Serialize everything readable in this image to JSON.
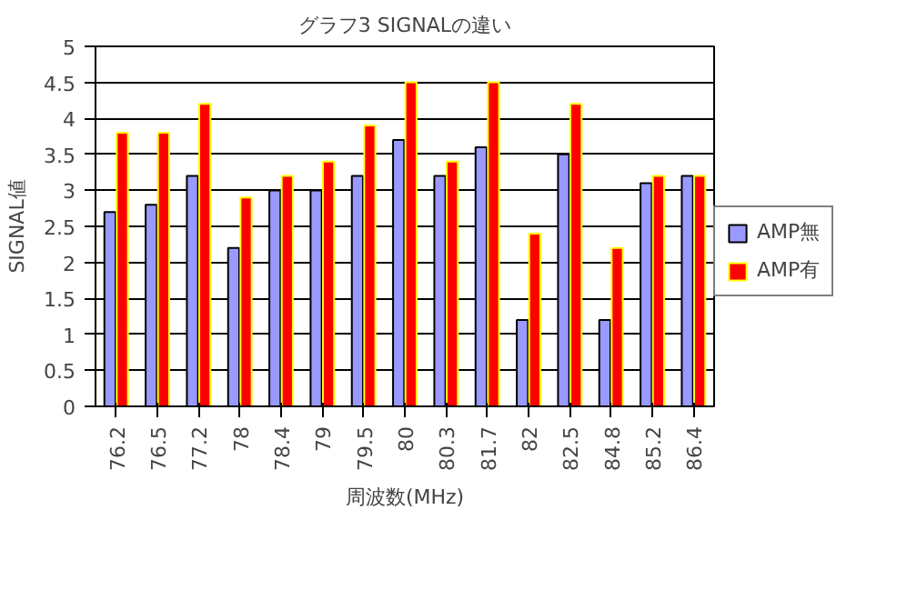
{
  "chart_data": {
    "type": "bar",
    "title": "グラフ3 SIGNALの違い",
    "xlabel": "周波数(MHz)",
    "ylabel": "SIGNAL値",
    "categories": [
      "76.2",
      "76.5",
      "77.2",
      "78",
      "78.4",
      "79",
      "79.5",
      "80",
      "80.3",
      "81.7",
      "82",
      "82.5",
      "84.8",
      "85.2",
      "86.4"
    ],
    "series": [
      {
        "name": "AMP無",
        "color": "#9999ff",
        "values": [
          2.7,
          2.8,
          3.2,
          2.2,
          3.0,
          3.0,
          3.2,
          3.7,
          3.2,
          3.6,
          1.2,
          3.5,
          1.2,
          3.1,
          3.2
        ]
      },
      {
        "name": "AMP有",
        "color": "#ff0000",
        "values": [
          3.8,
          3.8,
          4.2,
          2.9,
          3.2,
          3.4,
          3.9,
          4.5,
          3.4,
          4.5,
          2.4,
          4.2,
          2.2,
          3.2,
          3.2
        ]
      }
    ],
    "ylim": [
      0,
      5
    ],
    "yticks": [
      0,
      0.5,
      1,
      1.5,
      2,
      2.5,
      3,
      3.5,
      4,
      4.5,
      5
    ],
    "grid": "y",
    "legend": "right"
  }
}
